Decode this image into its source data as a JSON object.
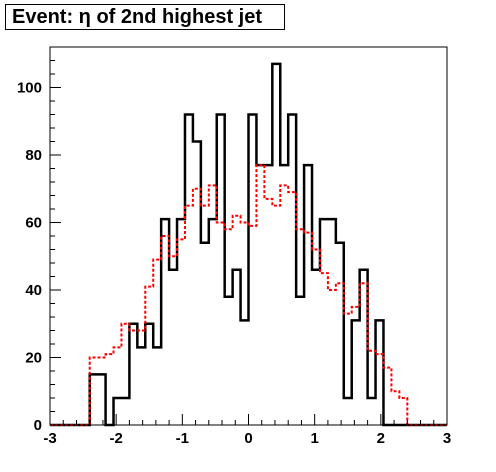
{
  "chart_data": {
    "type": "step",
    "title": "Event: η of 2nd highest jet",
    "xlabel": "",
    "ylabel": "",
    "xlim": [
      -3,
      3
    ],
    "ylim": [
      0,
      112
    ],
    "x_ticks": [
      -3,
      -2,
      -1,
      0,
      1,
      2,
      3
    ],
    "x_tick_labels": [
      "-3",
      "-2",
      "-1",
      "0",
      "1",
      "2",
      "3"
    ],
    "y_ticks": [
      0,
      20,
      40,
      60,
      80,
      100
    ],
    "y_tick_labels": [
      "0",
      "20",
      "40",
      "60",
      "80",
      "100"
    ],
    "bin_edges": [
      -3.0,
      -2.88,
      -2.76,
      -2.64,
      -2.52,
      -2.4,
      -2.28,
      -2.16,
      -2.04,
      -1.92,
      -1.8,
      -1.68,
      -1.56,
      -1.44,
      -1.32,
      -1.2,
      -1.08,
      -0.96,
      -0.84,
      -0.72,
      -0.6,
      -0.48,
      -0.36,
      -0.24,
      -0.12,
      0.0,
      0.12,
      0.24,
      0.36,
      0.48,
      0.6,
      0.72,
      0.84,
      0.96,
      1.08,
      1.2,
      1.32,
      1.44,
      1.56,
      1.68,
      1.8,
      1.92,
      2.04,
      2.16,
      2.28,
      2.4,
      2.52,
      2.64,
      2.76,
      2.88,
      3.0
    ],
    "series": [
      {
        "color": "#000000",
        "style": "solid",
        "values": [
          0,
          0,
          0,
          0,
          0,
          15,
          15,
          0,
          8,
          8,
          30,
          23,
          30,
          23,
          61,
          46,
          61,
          92,
          84,
          54,
          61,
          92,
          38,
          46,
          31,
          92,
          77,
          77,
          107,
          77,
          92,
          38,
          77,
          46,
          61,
          61,
          54,
          8,
          31,
          46,
          8,
          31,
          0,
          0,
          0,
          0,
          0,
          0,
          0,
          0
        ]
      },
      {
        "color": "#ff0000",
        "style": "dashed",
        "values": [
          0,
          0,
          0,
          0,
          0,
          20,
          20,
          21,
          23,
          30,
          28,
          28,
          41,
          49,
          56,
          50,
          55,
          65,
          70,
          65,
          71,
          60,
          58,
          62,
          60,
          59,
          77,
          67,
          65,
          71,
          69,
          58,
          57,
          52,
          45,
          40,
          42,
          33,
          35,
          42,
          22,
          21,
          17,
          10,
          8,
          0,
          0,
          0,
          0,
          0
        ]
      }
    ]
  }
}
